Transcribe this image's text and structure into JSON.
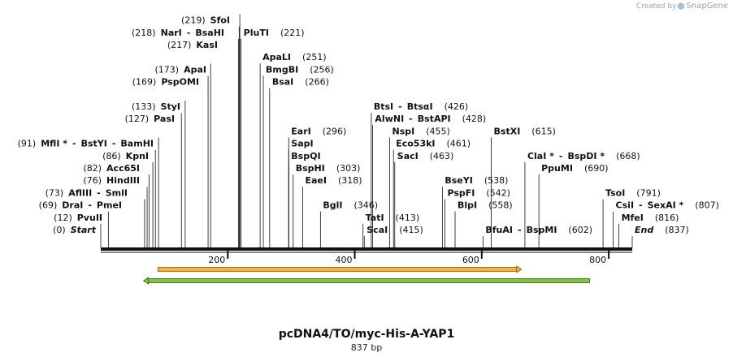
{
  "credit": {
    "prefix": "Created by",
    "brand": "SnapGene"
  },
  "construct": {
    "name": "pcDNA4/TO/myc-His-A-YAP1",
    "length_label": "837 bp",
    "length": 837
  },
  "colors": {
    "line": "#111111",
    "feature_orange": "#f2b33d",
    "feature_orange_border": "#8a5a00",
    "feature_green": "#7fc241",
    "feature_green_border": "#2f6b10"
  },
  "ticks": [
    {
      "value": 200,
      "label": "200"
    },
    {
      "value": 400,
      "label": "400"
    },
    {
      "value": 600,
      "label": "600"
    },
    {
      "value": 800,
      "label": "800"
    }
  ],
  "features": [
    {
      "name": "orange-feature",
      "start": 90,
      "end": 655,
      "direction": "forward",
      "color": "#f2b33d"
    },
    {
      "name": "green-feature",
      "start": 75,
      "end": 770,
      "direction": "reverse",
      "color": "#7fc241"
    }
  ],
  "sites": [
    {
      "row": 0,
      "pos": "(0)",
      "names": [
        "Start"
      ],
      "special": true,
      "cut": 0
    },
    {
      "row": 1,
      "pos": "(12)",
      "names": [
        "PvuII"
      ],
      "cut": 12
    },
    {
      "row": 2,
      "pos": "(69)",
      "names": [
        "DraI",
        "PmeI"
      ],
      "cut": 69
    },
    {
      "row": 3,
      "pos": "(73)",
      "names": [
        "AflIII",
        "SmlI"
      ],
      "cut": 73
    },
    {
      "row": 4,
      "pos": "(76)",
      "names": [
        "HindIII"
      ],
      "cut": 76
    },
    {
      "row": 5,
      "pos": "(82)",
      "names": [
        "Acc65I"
      ],
      "cut": 82
    },
    {
      "row": 6,
      "pos": "(86)",
      "names": [
        "KpnI"
      ],
      "cut": 86
    },
    {
      "row": 7,
      "pos": "(91)",
      "names": [
        "MflI *",
        "BstYI",
        "BamHI"
      ],
      "cut": 91
    },
    {
      "row": 9,
      "pos": "(127)",
      "names": [
        "PasI"
      ],
      "cut": 127
    },
    {
      "row": 10,
      "pos": "(133)",
      "names": [
        "StyI"
      ],
      "cut": 133
    },
    {
      "row": 12,
      "pos": "(169)",
      "names": [
        "PspOMI"
      ],
      "cut": 169
    },
    {
      "row": 13,
      "pos": "(173)",
      "names": [
        "ApaI"
      ],
      "cut": 173
    },
    {
      "row": 15,
      "pos": "(217)",
      "names": [
        "KasI"
      ],
      "cut": 217
    },
    {
      "row": 16,
      "pos": "(218)",
      "names": [
        "NarI",
        "BsaHI"
      ],
      "cut": 218
    },
    {
      "row": 17,
      "pos": "(219)",
      "names": [
        "SfoI"
      ],
      "cut": 219
    },
    {
      "row": 16,
      "pos": "(221)",
      "names": [
        "PluTI"
      ],
      "cut": 221,
      "right": true
    },
    {
      "row": 14,
      "pos": "(251)",
      "names": [
        "ApaLI"
      ],
      "cut": 251,
      "right": true
    },
    {
      "row": 13,
      "pos": "(256)",
      "names": [
        "BmgBI"
      ],
      "cut": 256,
      "right": true
    },
    {
      "row": 12,
      "pos": "(266)",
      "names": [
        "BsaI"
      ],
      "cut": 266,
      "right": true
    },
    {
      "row": 8,
      "pos": "(296)",
      "names": [
        "EarI"
      ],
      "cut": 296,
      "right": true
    },
    {
      "row": 7,
      "pos": "",
      "names": [
        "SapI"
      ],
      "cut": 296,
      "right": true
    },
    {
      "row": 6,
      "pos": "",
      "names": [
        "BspQI"
      ],
      "cut": 296,
      "right": true
    },
    {
      "row": 5,
      "pos": "(303)",
      "names": [
        "BspHI"
      ],
      "cut": 303,
      "right": true
    },
    {
      "row": 4,
      "pos": "(318)",
      "names": [
        "EaeI"
      ],
      "cut": 318,
      "right": true
    },
    {
      "row": 2,
      "pos": "(346)",
      "names": [
        "BglI"
      ],
      "cut": 346,
      "right": true
    },
    {
      "row": 1,
      "pos": "(413)",
      "names": [
        "TatI"
      ],
      "cut": 413,
      "right": true
    },
    {
      "row": 0,
      "pos": "(415)",
      "names": [
        "ScaI"
      ],
      "cut": 415,
      "right": true
    },
    {
      "row": 10,
      "pos": "(426)",
      "names": [
        "BtsI",
        "BtsαI"
      ],
      "cut": 426,
      "right": true
    },
    {
      "row": 9,
      "pos": "(428)",
      "names": [
        "AlwNI",
        "BstAPI"
      ],
      "cut": 428,
      "right": true
    },
    {
      "row": 8,
      "pos": "(455)",
      "names": [
        "NspI"
      ],
      "cut": 455,
      "right": true
    },
    {
      "row": 7,
      "pos": "(461)",
      "names": [
        "Eco53kI"
      ],
      "cut": 461,
      "right": true
    },
    {
      "row": 6,
      "pos": "(463)",
      "names": [
        "SacI"
      ],
      "cut": 463,
      "right": true
    },
    {
      "row": 4,
      "pos": "(538)",
      "names": [
        "BseYI"
      ],
      "cut": 538,
      "right": true
    },
    {
      "row": 3,
      "pos": "(542)",
      "names": [
        "PspFI"
      ],
      "cut": 542,
      "right": true
    },
    {
      "row": 2,
      "pos": "(558)",
      "names": [
        "BlpI"
      ],
      "cut": 558,
      "right": true
    },
    {
      "row": 8,
      "pos": "(615)",
      "names": [
        "BstXI"
      ],
      "cut": 615,
      "right": true
    },
    {
      "row": 0,
      "pos": "(602)",
      "names": [
        "BfuAI",
        "BspMI"
      ],
      "cut": 602,
      "right": true
    },
    {
      "row": 6,
      "pos": "(668)",
      "names": [
        "ClaI *",
        "BspDI *"
      ],
      "cut": 668,
      "right": true
    },
    {
      "row": 5,
      "pos": "(690)",
      "names": [
        "PpuMI"
      ],
      "cut": 690,
      "right": true
    },
    {
      "row": 3,
      "pos": "(791)",
      "names": [
        "TsoI"
      ],
      "cut": 791,
      "right": true
    },
    {
      "row": 2,
      "pos": "(807)",
      "names": [
        "CsiI",
        "SexAI *"
      ],
      "cut": 807,
      "right": true
    },
    {
      "row": 1,
      "pos": "(816)",
      "names": [
        "MfeI"
      ],
      "cut": 816,
      "right": true
    },
    {
      "row": 0,
      "pos": "(837)",
      "names": [
        "End"
      ],
      "special": true,
      "cut": 837,
      "right": true
    }
  ]
}
